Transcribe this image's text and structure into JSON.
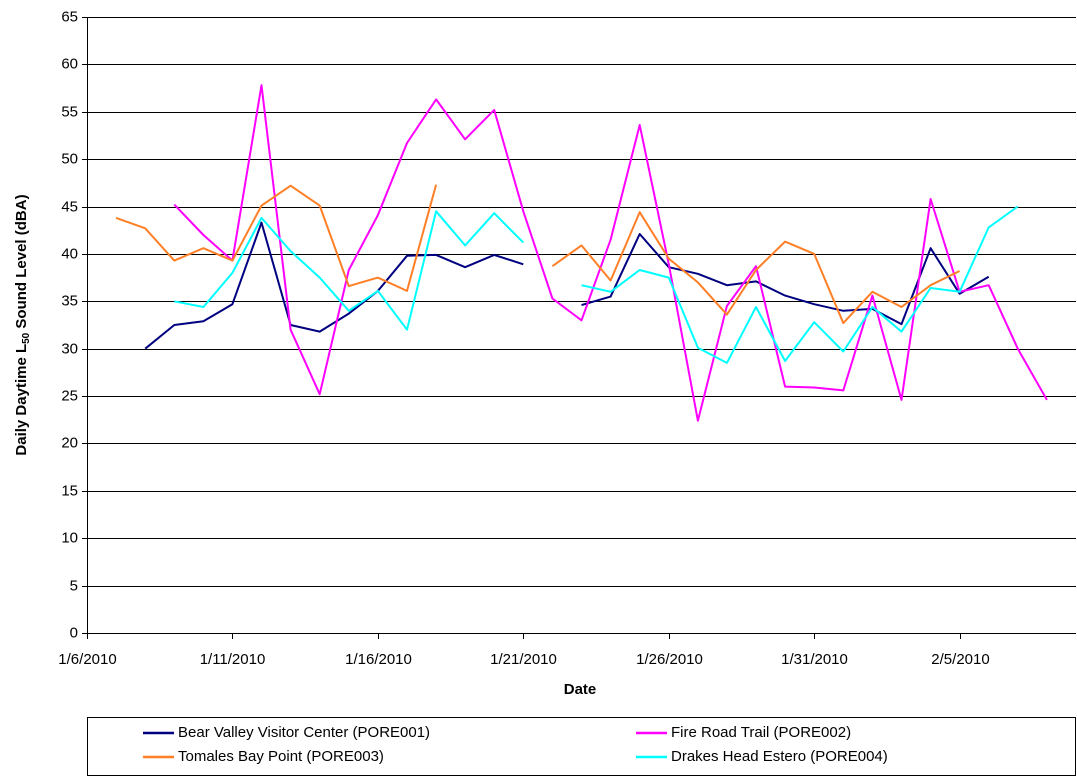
{
  "chart_data": {
    "type": "line",
    "y_label": {
      "prefix": "Daily Daytime L",
      "subscript": "50",
      "suffix": " Sound Level (dBA)"
    },
    "x_label": "Date",
    "x": [
      "1/7/2010",
      "1/8/2010",
      "1/9/2010",
      "1/10/2010",
      "1/11/2010",
      "1/12/2010",
      "1/13/2010",
      "1/14/2010",
      "1/15/2010",
      "1/16/2010",
      "1/17/2010",
      "1/18/2010",
      "1/19/2010",
      "1/20/2010",
      "1/21/2010",
      "1/22/2010",
      "1/23/2010",
      "1/24/2010",
      "1/25/2010",
      "1/26/2010",
      "1/27/2010",
      "1/28/2010",
      "1/29/2010",
      "1/30/2010",
      "1/31/2010",
      "2/1/2010",
      "2/2/2010",
      "2/3/2010",
      "2/4/2010",
      "2/5/2010",
      "2/6/2010",
      "2/7/2010",
      "2/8/2010"
    ],
    "series": [
      {
        "name": "Bear Valley Visitor Center (PORE001)",
        "color": "#000080",
        "values": [
          null,
          30,
          32.5,
          32.9,
          34.7,
          43.3,
          32.5,
          31.8,
          33.7,
          36.1,
          39.8,
          39.9,
          38.6,
          39.9,
          38.9,
          null,
          34.6,
          35.5,
          42.1,
          38.6,
          37.9,
          36.7,
          37.1,
          35.6,
          34.7,
          34.0,
          34.2,
          32.6,
          40.6,
          35.8,
          37.6,
          null,
          null
        ]
      },
      {
        "name": "Fire Road Trail (PORE002)",
        "color": "#ff00ff",
        "values": [
          null,
          null,
          45.2,
          42.0,
          39.3,
          57.8,
          32.0,
          25.2,
          38.3,
          44.1,
          51.7,
          56.3,
          52.1,
          55.2,
          44.5,
          35.3,
          33.0,
          41.5,
          53.6,
          38.9,
          22.4,
          34.5,
          38.7,
          26.0,
          25.9,
          25.6,
          35.6,
          24.6,
          45.8,
          36.0,
          36.7,
          30.0,
          24.6
        ]
      },
      {
        "name": "Tomales Bay Point (PORE003)",
        "color": "#ff7f27",
        "values": [
          43.8,
          42.7,
          39.3,
          40.6,
          39.3,
          45.1,
          47.2,
          45.1,
          36.6,
          37.5,
          36.1,
          47.3,
          null,
          null,
          null,
          38.7,
          40.9,
          37.2,
          44.4,
          39.5,
          37.0,
          33.6,
          38.3,
          41.3,
          40.0,
          32.7,
          36.0,
          34.4,
          36.7,
          38.2,
          null,
          null,
          null
        ]
      },
      {
        "name": "Drakes Head Estero (PORE004)",
        "color": "#00ffff",
        "values": [
          null,
          null,
          35.0,
          34.4,
          38.0,
          43.8,
          40.3,
          37.5,
          34.0,
          36.1,
          32.0,
          44.5,
          40.9,
          44.3,
          41.2,
          null,
          36.7,
          36.0,
          38.3,
          37.5,
          30.1,
          28.5,
          34.4,
          28.7,
          32.8,
          29.7,
          34.4,
          31.8,
          36.4,
          36.0,
          42.8,
          45.0,
          null
        ]
      }
    ],
    "xlim": [
      "1/6/2010",
      "2/9/2010"
    ],
    "xticks": [
      "1/6/2010",
      "1/11/2010",
      "1/16/2010",
      "1/21/2010",
      "1/26/2010",
      "1/31/2010",
      "2/5/2010"
    ],
    "ylim": [
      0,
      65
    ],
    "yticks": [
      0,
      5,
      10,
      15,
      20,
      25,
      30,
      35,
      40,
      45,
      50,
      55,
      60,
      65
    ],
    "grid": true
  }
}
